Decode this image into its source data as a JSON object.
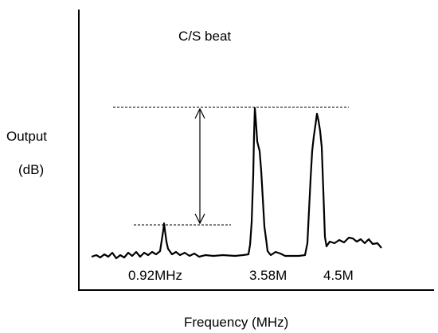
{
  "title": "C/S beat",
  "ylabel_line1": "Output",
  "ylabel_line2": "(dB)",
  "xlabel": "Frequency (MHz)",
  "peaks": [
    {
      "label": "0.92MHz"
    },
    {
      "label": "3.58M"
    },
    {
      "label": "4.5M"
    }
  ],
  "colors": {
    "ink": "#000000",
    "background": "#ffffff"
  }
}
